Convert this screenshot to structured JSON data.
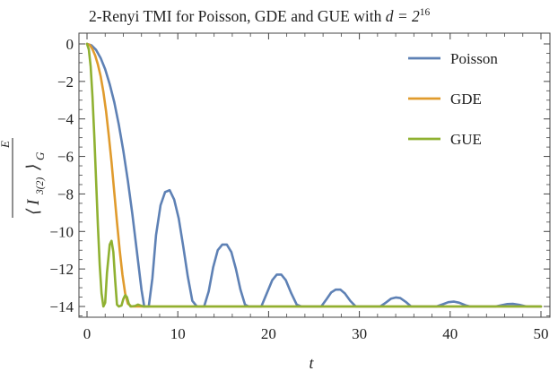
{
  "chart_data": {
    "type": "line",
    "title_prefix": "2-Renyi TMI for Poisson, GDE and GUE with ",
    "title_math": "d = 2",
    "title_exponent": "16",
    "xlabel": "t",
    "ylabel": {
      "base": "I",
      "subscript": "3(2)",
      "outer_subscript": "G",
      "superscript": "E"
    },
    "xlim": [
      0,
      50
    ],
    "ylim": [
      -14.8,
      1.0
    ],
    "xticks": [
      0,
      10,
      20,
      30,
      40,
      50
    ],
    "yticks": [
      0,
      -2,
      -4,
      -6,
      -8,
      -10,
      -12,
      -14
    ],
    "xtick_labels": [
      "0",
      "10",
      "20",
      "30",
      "40",
      "50"
    ],
    "ytick_labels": [
      "0",
      "−2",
      "−4",
      "−6",
      "−8",
      "−10",
      "−12",
      "−14"
    ],
    "grid": false,
    "legend_position": "top-right",
    "series": [
      {
        "name": "Poisson",
        "color": "#5E81B5",
        "points": [
          [
            0,
            0
          ],
          [
            0.5,
            -0.08
          ],
          [
            1.0,
            -0.32
          ],
          [
            1.5,
            -0.75
          ],
          [
            2.0,
            -1.35
          ],
          [
            2.5,
            -2.15
          ],
          [
            3.0,
            -3.1
          ],
          [
            3.5,
            -4.3
          ],
          [
            4.0,
            -5.7
          ],
          [
            4.5,
            -7.3
          ],
          [
            5.0,
            -9.1
          ],
          [
            5.5,
            -11.1
          ],
          [
            6.0,
            -13.1
          ],
          [
            6.3,
            -14.0
          ],
          [
            6.8,
            -14.0
          ],
          [
            7.2,
            -12.5
          ],
          [
            7.6,
            -10.2
          ],
          [
            8.1,
            -8.6
          ],
          [
            8.6,
            -7.9
          ],
          [
            9.1,
            -7.8
          ],
          [
            9.6,
            -8.3
          ],
          [
            10.1,
            -9.3
          ],
          [
            10.6,
            -10.8
          ],
          [
            11.1,
            -12.4
          ],
          [
            11.6,
            -13.7
          ],
          [
            12.1,
            -14.0
          ],
          [
            12.9,
            -14.0
          ],
          [
            13.4,
            -13.2
          ],
          [
            13.9,
            -11.9
          ],
          [
            14.4,
            -11.0
          ],
          [
            14.9,
            -10.7
          ],
          [
            15.4,
            -10.7
          ],
          [
            15.9,
            -11.1
          ],
          [
            16.4,
            -12.0
          ],
          [
            16.9,
            -13.1
          ],
          [
            17.4,
            -13.9
          ],
          [
            17.8,
            -14.0
          ],
          [
            19.2,
            -14.0
          ],
          [
            19.8,
            -13.3
          ],
          [
            20.4,
            -12.6
          ],
          [
            20.9,
            -12.3
          ],
          [
            21.4,
            -12.3
          ],
          [
            21.9,
            -12.6
          ],
          [
            22.5,
            -13.3
          ],
          [
            23.1,
            -13.9
          ],
          [
            23.6,
            -14.0
          ],
          [
            25.8,
            -14.0
          ],
          [
            26.4,
            -13.6
          ],
          [
            26.9,
            -13.25
          ],
          [
            27.4,
            -13.1
          ],
          [
            27.9,
            -13.1
          ],
          [
            28.4,
            -13.3
          ],
          [
            29.0,
            -13.7
          ],
          [
            29.6,
            -14.0
          ],
          [
            32.3,
            -14.0
          ],
          [
            32.9,
            -13.8
          ],
          [
            33.5,
            -13.58
          ],
          [
            34.0,
            -13.52
          ],
          [
            34.5,
            -13.55
          ],
          [
            35.1,
            -13.75
          ],
          [
            35.7,
            -14.0
          ],
          [
            38.5,
            -14.0
          ],
          [
            39.2,
            -13.88
          ],
          [
            39.8,
            -13.77
          ],
          [
            40.4,
            -13.74
          ],
          [
            41.0,
            -13.8
          ],
          [
            41.7,
            -13.94
          ],
          [
            42.2,
            -14.0
          ],
          [
            45.0,
            -14.0
          ],
          [
            45.7,
            -13.93
          ],
          [
            46.3,
            -13.87
          ],
          [
            46.9,
            -13.86
          ],
          [
            47.6,
            -13.91
          ],
          [
            48.3,
            -13.99
          ],
          [
            48.6,
            -14.0
          ],
          [
            50,
            -14.0
          ]
        ]
      },
      {
        "name": "GDE",
        "color": "#E09B2D",
        "points": [
          [
            0,
            0
          ],
          [
            0.3,
            -0.05
          ],
          [
            0.6,
            -0.28
          ],
          [
            0.9,
            -0.62
          ],
          [
            1.2,
            -1.1
          ],
          [
            1.5,
            -1.72
          ],
          [
            1.8,
            -2.55
          ],
          [
            2.1,
            -3.6
          ],
          [
            2.4,
            -4.9
          ],
          [
            2.7,
            -6.3
          ],
          [
            3.0,
            -7.9
          ],
          [
            3.3,
            -9.5
          ],
          [
            3.6,
            -11.0
          ],
          [
            3.9,
            -12.3
          ],
          [
            4.2,
            -13.3
          ],
          [
            4.5,
            -13.85
          ],
          [
            4.9,
            -14.0
          ],
          [
            50,
            -14.0
          ]
        ]
      },
      {
        "name": "GUE",
        "color": "#8FB131",
        "points": [
          [
            0,
            0
          ],
          [
            0.2,
            -0.3
          ],
          [
            0.4,
            -1.2
          ],
          [
            0.6,
            -2.8
          ],
          [
            0.8,
            -4.9
          ],
          [
            1.0,
            -7.3
          ],
          [
            1.2,
            -9.7
          ],
          [
            1.4,
            -11.8
          ],
          [
            1.6,
            -13.3
          ],
          [
            1.8,
            -14.0
          ],
          [
            2.0,
            -13.8
          ],
          [
            2.2,
            -12.2
          ],
          [
            2.5,
            -10.7
          ],
          [
            2.7,
            -10.5
          ],
          [
            2.9,
            -11.1
          ],
          [
            3.1,
            -12.6
          ],
          [
            3.3,
            -13.9
          ],
          [
            3.5,
            -14.0
          ],
          [
            3.8,
            -13.95
          ],
          [
            4.0,
            -13.6
          ],
          [
            4.2,
            -13.4
          ],
          [
            4.4,
            -13.5
          ],
          [
            4.6,
            -13.85
          ],
          [
            4.8,
            -14.0
          ],
          [
            5.3,
            -13.97
          ],
          [
            5.6,
            -13.9
          ],
          [
            5.9,
            -13.95
          ],
          [
            6.2,
            -14.0
          ],
          [
            50,
            -14.0
          ]
        ]
      }
    ]
  }
}
